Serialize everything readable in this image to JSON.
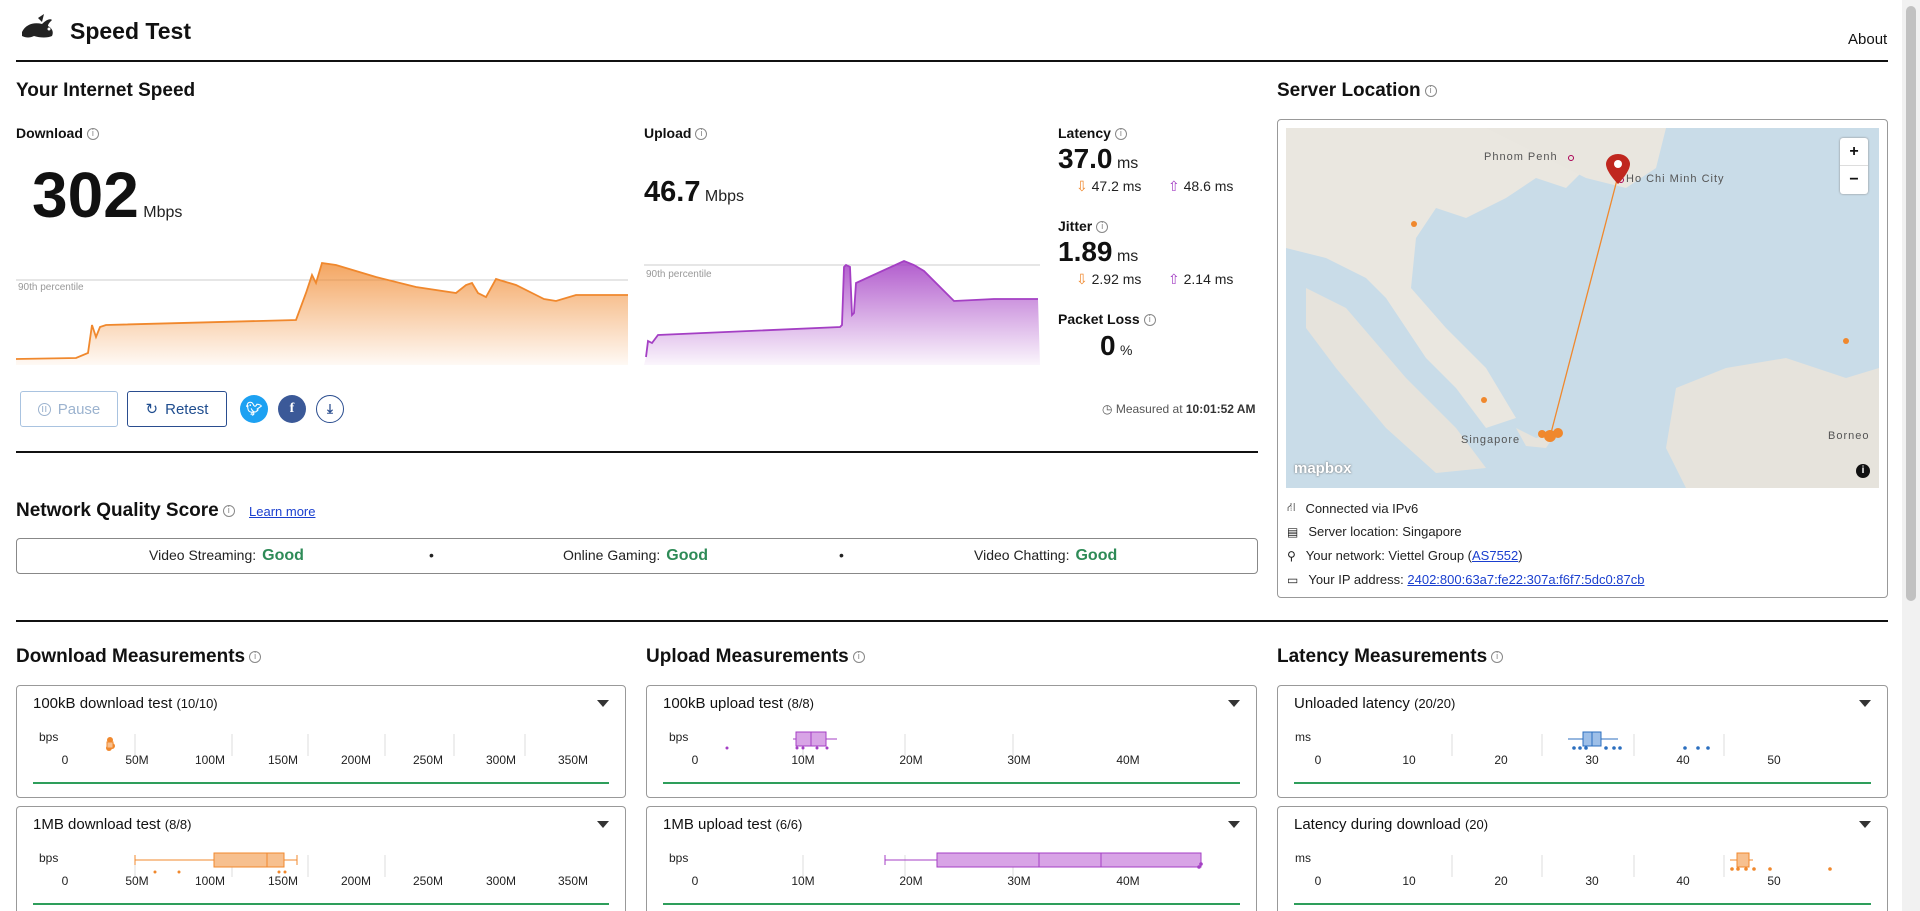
{
  "header": {
    "title": "Speed Test",
    "about": "About"
  },
  "speed": {
    "title": "Your Internet Speed",
    "download": {
      "label": "Download",
      "value": "302",
      "unit": "Mbps",
      "percentile": "90th percentile"
    },
    "upload": {
      "label": "Upload",
      "value": "46.7",
      "unit": "Mbps",
      "percentile": "90th percentile"
    },
    "latency": {
      "label": "Latency",
      "value": "37.0",
      "unit": "ms",
      "down": "47.2 ms",
      "up": "48.6 ms"
    },
    "jitter": {
      "label": "Jitter",
      "value": "1.89",
      "unit": "ms",
      "down": "2.92 ms",
      "up": "2.14 ms"
    },
    "packet_loss": {
      "label": "Packet Loss",
      "value": "0",
      "unit": "%"
    },
    "pause": "Pause",
    "retest": "Retest",
    "measured_prefix": "Measured at",
    "measured_time": "10:01:52 AM"
  },
  "quality": {
    "title": "Network Quality Score",
    "learn_more": "Learn more",
    "items": [
      {
        "label": "Video Streaming:",
        "value": "Good"
      },
      {
        "label": "Online Gaming:",
        "value": "Good"
      },
      {
        "label": "Video Chatting:",
        "value": "Good"
      }
    ],
    "separator": "•"
  },
  "server": {
    "title": "Server Location",
    "map_labels": {
      "phnom_penh": "Phnom Penh",
      "hcmc": "Ho Chi Minh City",
      "singapore": "Singapore",
      "borneo": "Borneo",
      "mapbox": "mapbox"
    },
    "zoom_in": "+",
    "zoom_out": "−",
    "connected": "Connected via IPv6",
    "location_prefix": "Server location:",
    "location": "Singapore",
    "network_prefix": "Your network: Viettel Group (",
    "network_as": "AS7552",
    "network_suffix": ")",
    "ip_prefix": "Your IP address:",
    "ip": "2402:800:63a7:fe22:307a:f6f7:5dc0:87cb"
  },
  "measurements": {
    "download": {
      "title": "Download Measurements",
      "tests": [
        {
          "name": "100kB download test",
          "count": "(10/10)",
          "unit": "bps",
          "ticks": [
            "0",
            "50M",
            "100M",
            "150M",
            "200M",
            "250M",
            "300M",
            "350M"
          ]
        },
        {
          "name": "1MB download test",
          "count": "(8/8)",
          "unit": "bps",
          "ticks": [
            "0",
            "50M",
            "100M",
            "150M",
            "200M",
            "250M",
            "300M",
            "350M"
          ]
        }
      ]
    },
    "upload": {
      "title": "Upload Measurements",
      "tests": [
        {
          "name": "100kB upload test",
          "count": "(8/8)",
          "unit": "bps",
          "ticks": [
            "0",
            "10M",
            "20M",
            "30M",
            "40M"
          ]
        },
        {
          "name": "1MB upload test",
          "count": "(6/6)",
          "unit": "bps",
          "ticks": [
            "0",
            "10M",
            "20M",
            "30M",
            "40M"
          ]
        }
      ]
    },
    "latency": {
      "title": "Latency Measurements",
      "tests": [
        {
          "name": "Unloaded latency",
          "count": "(20/20)",
          "unit": "ms",
          "ticks": [
            "0",
            "10",
            "20",
            "30",
            "40",
            "50"
          ]
        },
        {
          "name": "Latency during download",
          "count": "(20)",
          "unit": "ms",
          "ticks": [
            "0",
            "10",
            "20",
            "30",
            "40",
            "50"
          ]
        }
      ]
    }
  },
  "colors": {
    "download": "#f0882d",
    "upload": "#a43fc4",
    "latency": "#2c6fbf",
    "good": "#2e8b57"
  }
}
